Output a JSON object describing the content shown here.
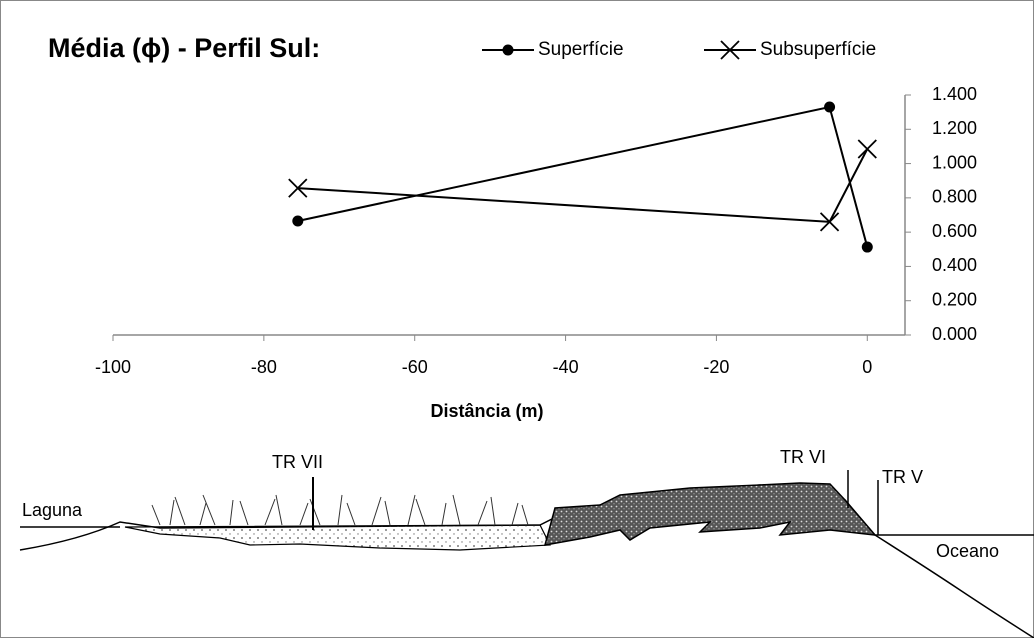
{
  "chart_data": {
    "type": "line",
    "title": "Média (ϕ) - Perfil Sul:",
    "x_label": "Distância (m)",
    "x": [
      -75.5,
      -5,
      0
    ],
    "series": [
      {
        "name": "Superfície",
        "color": "#000000",
        "marker": "circle",
        "values": [
          0.665,
          1.33,
          0.513
        ]
      },
      {
        "name": "Subsuperfície",
        "color": "#000000",
        "marker": "x",
        "values": [
          0.857,
          0.66,
          1.085
        ]
      }
    ],
    "xlim": [
      -100,
      5
    ],
    "xticks": [
      -100,
      -80,
      -60,
      -40,
      -20,
      0
    ],
    "ylim": [
      0,
      1.4
    ],
    "yticks": [
      {
        "value": 0,
        "label": "0.000"
      },
      {
        "value": 0.2,
        "label": "0.200"
      },
      {
        "value": 0.4,
        "label": "0.400"
      },
      {
        "value": 0.6,
        "label": "0.600"
      },
      {
        "value": 0.8,
        "label": "0.800"
      },
      {
        "value": 1,
        "label": "1.000"
      },
      {
        "value": 1.2,
        "label": "1.200"
      },
      {
        "value": 1.4,
        "label": "1.400"
      }
    ],
    "y_axis_side": "right",
    "grid": false,
    "legend": "top"
  },
  "illustration": {
    "labels": [
      "TR VII",
      "TR VI",
      "TR V",
      "Laguna",
      "Oceano"
    ]
  }
}
